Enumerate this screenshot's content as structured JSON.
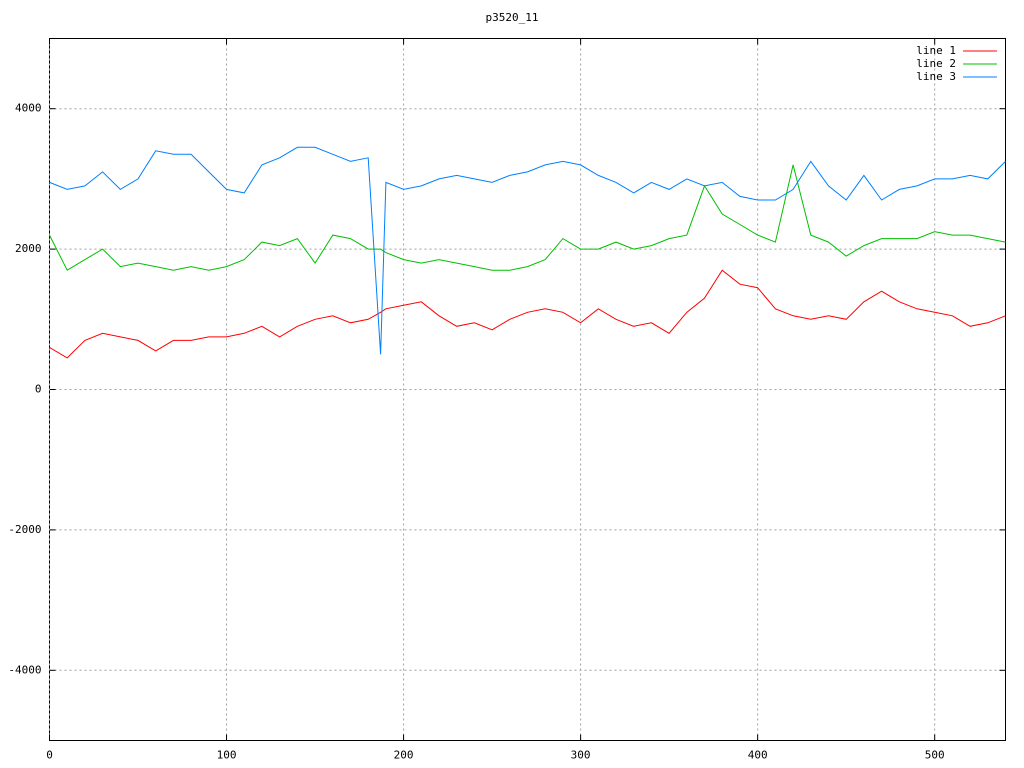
{
  "chart_data": {
    "type": "line",
    "title": "p3520_11",
    "x": [
      0,
      10,
      20,
      30,
      40,
      50,
      60,
      70,
      80,
      90,
      100,
      110,
      120,
      130,
      140,
      150,
      160,
      170,
      180,
      187,
      190,
      200,
      210,
      220,
      230,
      240,
      250,
      260,
      270,
      280,
      290,
      300,
      310,
      320,
      330,
      340,
      350,
      360,
      370,
      380,
      390,
      400,
      410,
      420,
      430,
      440,
      450,
      460,
      470,
      480,
      490,
      500,
      510,
      520,
      530,
      540
    ],
    "series": [
      {
        "name": "line 1",
        "color": "#ff0000",
        "values": [
          600,
          450,
          700,
          800,
          750,
          700,
          550,
          700,
          700,
          750,
          750,
          800,
          900,
          750,
          900,
          1000,
          1050,
          950,
          1000,
          1100,
          1150,
          1200,
          1250,
          1050,
          900,
          950,
          850,
          1000,
          1100,
          1150,
          1100,
          950,
          1150,
          1000,
          900,
          950,
          800,
          1100,
          1300,
          1700,
          1500,
          1450,
          1150,
          1050,
          1000,
          1050,
          1000,
          1250,
          1400,
          1250,
          1150,
          1100,
          1050,
          900,
          950,
          1050
        ]
      },
      {
        "name": "line 2",
        "color": "#00c000",
        "values": [
          2200,
          1700,
          1850,
          2000,
          1750,
          1800,
          1750,
          1700,
          1750,
          1700,
          1750,
          1850,
          2100,
          2050,
          2150,
          1800,
          2200,
          2150,
          2000,
          2000,
          1950,
          1850,
          1800,
          1850,
          1800,
          1750,
          1700,
          1700,
          1750,
          1850,
          2150,
          2000,
          2000,
          2100,
          2000,
          2050,
          2150,
          2200,
          2900,
          2500,
          2350,
          2200,
          2100,
          3200,
          2200,
          2100,
          1900,
          2050,
          2150,
          2150,
          2150,
          2250,
          2200,
          2200,
          2150,
          2100
        ]
      },
      {
        "name": "line 3",
        "color": "#0080ff",
        "values": [
          2950,
          2850,
          2900,
          3100,
          2850,
          3000,
          3400,
          3350,
          3350,
          3100,
          2850,
          2800,
          3200,
          3300,
          3450,
          3450,
          3350,
          3250,
          3300,
          500,
          2950,
          2850,
          2900,
          3000,
          3050,
          3000,
          2950,
          3050,
          3100,
          3200,
          3250,
          3200,
          3050,
          2950,
          2800,
          2950,
          2850,
          3000,
          2900,
          2950,
          2750,
          2700,
          2700,
          2850,
          3250,
          2900,
          2700,
          3050,
          2700,
          2850,
          2900,
          3000,
          3000,
          3050,
          3000,
          3250
        ]
      }
    ],
    "xlim": [
      0,
      540
    ],
    "xticks": [
      0,
      100,
      200,
      300,
      400,
      500
    ],
    "ylim": [
      -5000,
      5000
    ],
    "yticks": [
      -4000,
      -2000,
      0,
      2000,
      4000
    ],
    "grid": true,
    "legend": "top-right"
  }
}
